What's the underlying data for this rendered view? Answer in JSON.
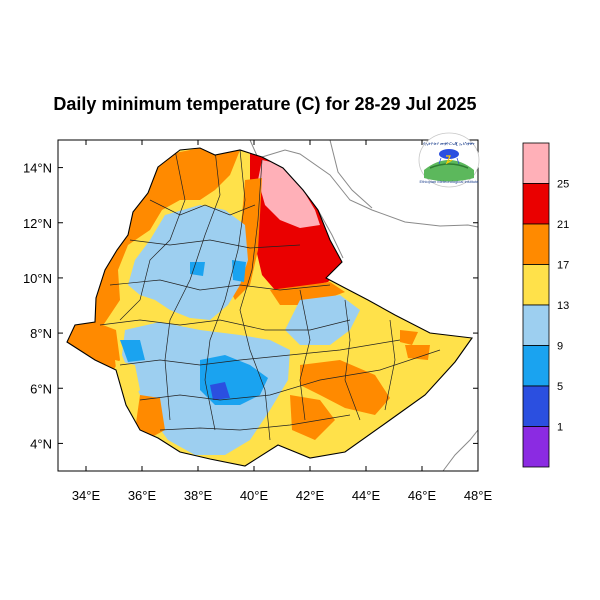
{
  "title": "Daily minimum temperature (C) for 28-29 Jul 2025",
  "map": {
    "lon_ticks": [
      "34°E",
      "36°E",
      "38°E",
      "40°E",
      "42°E",
      "44°E",
      "46°E",
      "48°E"
    ],
    "lat_ticks": [
      "4°N",
      "6°N",
      "8°N",
      "10°N",
      "12°N",
      "14°N"
    ],
    "lon_range": [
      33,
      48
    ],
    "lat_range": [
      3,
      15
    ]
  },
  "colorbar": {
    "labels": [
      "1",
      "5",
      "9",
      "13",
      "17",
      "21",
      "25"
    ],
    "colors": [
      "#8b2be2",
      "#2b4fe0",
      "#1aa3f0",
      "#9dcff0",
      "#ffe14a",
      "#ff8a00",
      "#ea0000",
      "#ffb0b8"
    ]
  },
  "logo": {
    "top_text": "የኢትዮጵያ መቲዮሮሎጂ ኢንስቲቱት",
    "bottom_text": "Ethiopian Meteorological Institute"
  }
}
